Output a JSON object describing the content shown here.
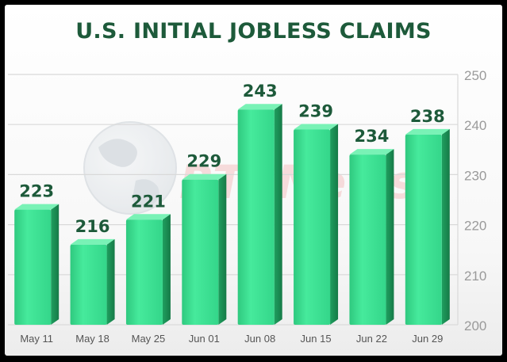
{
  "chart_data": {
    "type": "bar",
    "title": "U.S. INITIAL JOBLESS CLAIMS",
    "categories": [
      "May 11",
      "May 18",
      "May 25",
      "Jun 01",
      "Jun 08",
      "Jun 15",
      "Jun 22",
      "Jun 29"
    ],
    "values": [
      223,
      216,
      221,
      229,
      243,
      239,
      234,
      238
    ],
    "ylim": [
      200,
      250
    ],
    "yticks": [
      200,
      210,
      220,
      230,
      240,
      250
    ],
    "grid": true,
    "axis_position": "right",
    "colors": {
      "bar_top": "#79f2b6",
      "bar_face": "#3fe595",
      "bar_side": "#22b46b",
      "label": "#1d5a3a",
      "tick": "#9a9a9a",
      "grid": "#d9d9d9"
    }
  },
  "watermark": {
    "text": "RTTNews",
    "icon": "globe-icon"
  }
}
